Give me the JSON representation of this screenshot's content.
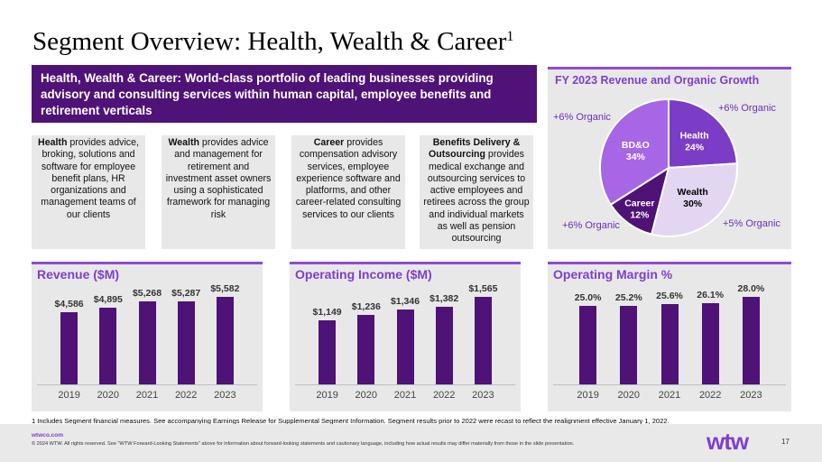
{
  "title": {
    "text": "Segment Overview: Health, Wealth & Career",
    "sup": "1"
  },
  "banner": {
    "text": "Health, Wealth & Career: World-class portfolio of leading businesses providing advisory and consulting services within human capital, employee benefits and retirement verticals"
  },
  "cards": [
    {
      "bold": "Health",
      "text": " provides advice, broking, solutions and software for employee benefit plans, HR organizations and management teams of our clients"
    },
    {
      "bold": "Wealth",
      "text": " provides advice and management for retirement and investment asset owners using a sophisticated framework for managing risk"
    },
    {
      "bold": "Career",
      "text": " provides compensation advisory services, employee experience software and platforms, and other career-related consulting services to our clients"
    },
    {
      "bold": "Benefits Delivery & Outsourcing",
      "text": " provides medical exchange and outsourcing services to active employees and retirees across the group and individual markets as well as pension outsourcing"
    }
  ],
  "pie": {
    "title": "FY 2023 Revenue and Organic Growth",
    "slices": [
      {
        "name": "Health",
        "pct_text": "24%",
        "value": 24,
        "color": "#7b3cc6",
        "text_color": "#ffffff",
        "organic": "+6% Organic"
      },
      {
        "name": "Wealth",
        "pct_text": "30%",
        "value": 30,
        "color": "#e3d6f2",
        "text_color": "#000000",
        "organic": "+5% Organic"
      },
      {
        "name": "Career",
        "pct_text": "12%",
        "value": 12,
        "color": "#4f1277",
        "text_color": "#ffffff",
        "organic": "+6% Organic"
      },
      {
        "name": "BD&O",
        "pct_text": "34%",
        "value": 34,
        "color": "#a666e6",
        "text_color": "#ffffff",
        "organic": "+6% Organic"
      }
    ]
  },
  "chart_data": [
    {
      "type": "bar",
      "title": "Revenue ($M)",
      "categories": [
        "2019",
        "2020",
        "2021",
        "2022",
        "2023"
      ],
      "values": [
        4586,
        4895,
        5268,
        5287,
        5582
      ],
      "labels": [
        "$4,586",
        "$4,895",
        "$5,268",
        "$5,287",
        "$5,582"
      ],
      "ylim": [
        0,
        5582
      ]
    },
    {
      "type": "bar",
      "title": "Operating Income ($M)",
      "categories": [
        "2019",
        "2020",
        "2021",
        "2022",
        "2023"
      ],
      "values": [
        1149,
        1236,
        1346,
        1382,
        1565
      ],
      "labels": [
        "$1,149",
        "$1,236",
        "$1,346",
        "$1,382",
        "$1,565"
      ],
      "ylim": [
        0,
        1565
      ]
    },
    {
      "type": "bar",
      "title": "Operating Margin %",
      "categories": [
        "2019",
        "2020",
        "2021",
        "2022",
        "2023"
      ],
      "values": [
        25.0,
        25.2,
        25.6,
        26.1,
        28.0
      ],
      "labels": [
        "25.0%",
        "25.2%",
        "25.6%",
        "26.1%",
        "28.0%"
      ],
      "ylim": [
        0,
        28.0
      ]
    }
  ],
  "footnote": "1 Includes Segment financial measures. See accompanying Earnings Release for Supplemental Segment Information. Segment results prior to 2022 were recast to reflect the realignment effective January 1, 2022.",
  "footer": {
    "url": "wtwco.com",
    "copyright": "© 2024 WTW. All rights reserved. See \"WTW Forward-Looking Statements\" above for information about forward-looking statements and cautionary language, including how actual results may differ materially from those in the slide presentation.",
    "logo": "wtw",
    "page": "17"
  }
}
